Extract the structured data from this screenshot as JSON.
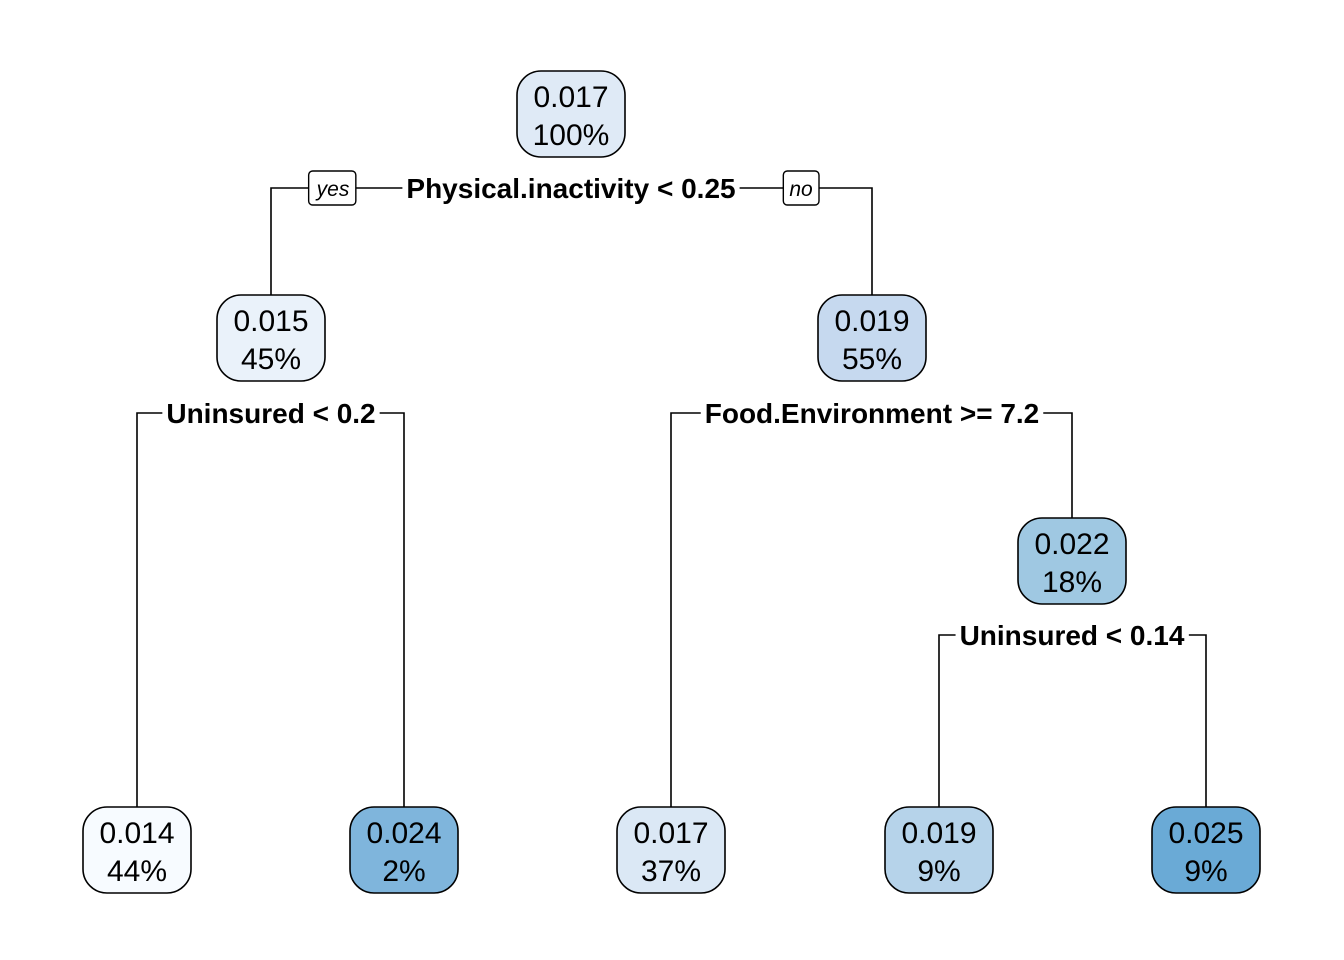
{
  "tree": {
    "branch_labels": {
      "yes": "yes",
      "no": "no"
    },
    "nodes": [
      {
        "id": "root",
        "value": "0.017",
        "pct": "100%",
        "color": "#dfeaf6"
      },
      {
        "id": "n2",
        "value": "0.015",
        "pct": "45%",
        "color": "#eaf2fa"
      },
      {
        "id": "n3",
        "value": "0.019",
        "pct": "55%",
        "color": "#c6d9ef"
      },
      {
        "id": "n7",
        "value": "0.022",
        "pct": "18%",
        "color": "#9fc8e2"
      },
      {
        "id": "leaf1",
        "value": "0.014",
        "pct": "44%",
        "color": "#f7fbff"
      },
      {
        "id": "leaf2",
        "value": "0.024",
        "pct": "2%",
        "color": "#7fb5dc"
      },
      {
        "id": "leaf3",
        "value": "0.017",
        "pct": "37%",
        "color": "#dbe8f5"
      },
      {
        "id": "leaf4",
        "value": "0.019",
        "pct": "9%",
        "color": "#b6d3ea"
      },
      {
        "id": "leaf5",
        "value": "0.025",
        "pct": "9%",
        "color": "#6aaad6"
      }
    ],
    "splits": [
      {
        "id": "s_root",
        "label": "Physical.inactivity < 0.25"
      },
      {
        "id": "s_n2",
        "label": "Uninsured < 0.2"
      },
      {
        "id": "s_n3",
        "label": "Food.Environment >= 7.2"
      },
      {
        "id": "s_n7",
        "label": "Uninsured < 0.14"
      }
    ]
  }
}
